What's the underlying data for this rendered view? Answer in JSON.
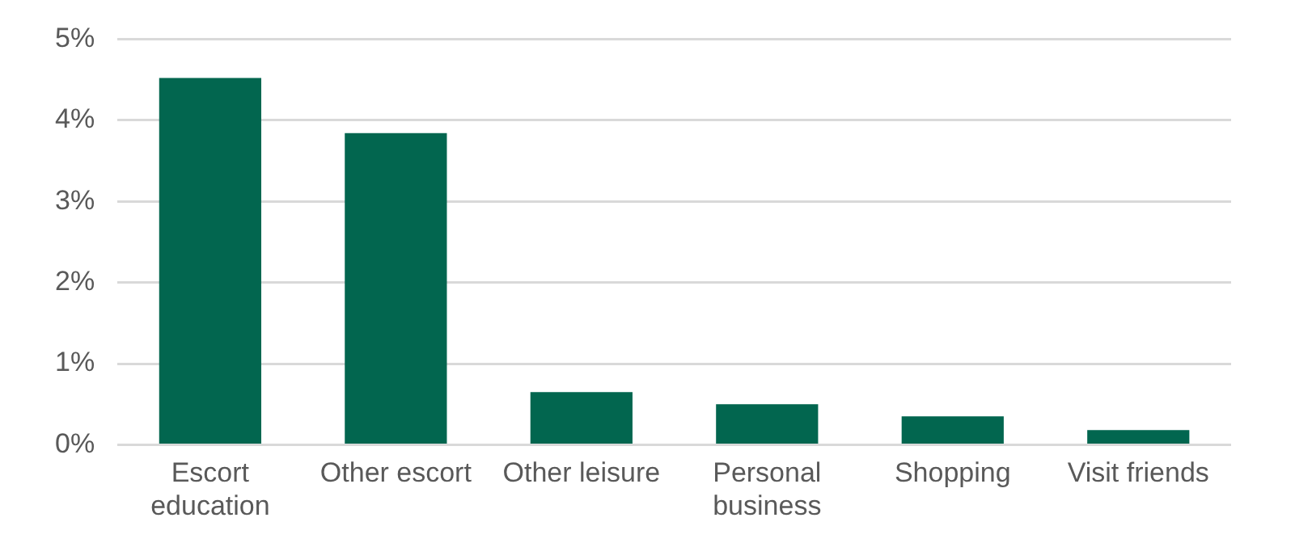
{
  "chart_data": {
    "type": "bar",
    "categories": [
      "Escort education",
      "Other escort",
      "Other leisure",
      "Personal business",
      "Shopping",
      "Visit friends"
    ],
    "values": [
      4.52,
      3.84,
      0.65,
      0.5,
      0.35,
      0.18
    ],
    "color": "#02664f",
    "ylim": [
      0,
      5
    ],
    "yticks": [
      {
        "value": 0,
        "label": "0%"
      },
      {
        "value": 1,
        "label": "1%"
      },
      {
        "value": 2,
        "label": "2%"
      },
      {
        "value": 3,
        "label": "3%"
      },
      {
        "value": 4,
        "label": "4%"
      },
      {
        "value": 5,
        "label": "5%"
      }
    ],
    "grid": "y",
    "legend": false
  }
}
